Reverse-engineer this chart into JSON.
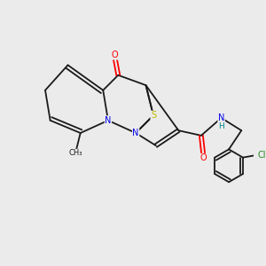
{
  "background_color": "#ebebeb",
  "bond_color": "#1a1a1a",
  "atom_colors": {
    "N": "#0000ee",
    "O": "#ff0000",
    "S": "#bbbb00",
    "Cl": "#228822",
    "H": "#008888",
    "C": "#1a1a1a"
  },
  "figsize": [
    3.0,
    3.0
  ],
  "dpi": 100,
  "bond_lw": 1.3,
  "font_size": 7.0
}
